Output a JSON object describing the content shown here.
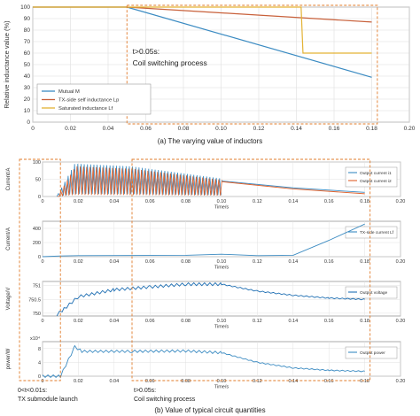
{
  "chart_data": [
    {
      "type": "line",
      "ylabel": "Relative inductance value (%)",
      "xlabel": "",
      "xlim": [
        0,
        0.2
      ],
      "ylim": [
        0,
        100
      ],
      "xticks": [
        "0",
        "0.02",
        "0.04",
        "0.06",
        "0.08",
        "0.10",
        "0.12",
        "0.14",
        "0.16",
        "0.18",
        "0.20"
      ],
      "yticks": [
        "0",
        "10",
        "20",
        "30",
        "40",
        "50",
        "60",
        "70",
        "80",
        "90",
        "100"
      ],
      "grid": true,
      "legend": "lower-left",
      "annotation": [
        "t>0.05s:",
        "Coil switching process"
      ],
      "caption": "(a) The varying value of inductors",
      "series": [
        {
          "name": "Mutual M",
          "color": "#3b8bc2",
          "x": [
            0,
            0.05,
            0.18
          ],
          "y": [
            100,
            100,
            39
          ]
        },
        {
          "name": "TX-side self inductance Lp",
          "color": "#c8603a",
          "x": [
            0,
            0.05,
            0.18
          ],
          "y": [
            100,
            100,
            87
          ]
        },
        {
          "name": "Saturated inductance Lf",
          "color": "#e3b234",
          "x": [
            0,
            0.05,
            0.1425,
            0.1435,
            0.18
          ],
          "y": [
            100,
            100,
            100,
            60,
            60
          ]
        }
      ]
    },
    {
      "type": "line",
      "ylabel": "Current/A",
      "xlabel": "Time/s",
      "xlim": [
        0,
        0.2
      ],
      "yticks": [
        "100",
        "50",
        "0"
      ],
      "xticks": [
        "0",
        "0.02",
        "0.04",
        "0.06",
        "0.08",
        "0.10",
        "0.12",
        "0.14",
        "0.16",
        "0.18",
        "0.20"
      ],
      "grid": true,
      "legend": "right",
      "series": [
        {
          "name": "Output current i1",
          "color": "#3b8bc2"
        },
        {
          "name": "Output current i2",
          "color": "#e0602a"
        }
      ]
    },
    {
      "type": "line",
      "ylabel": "Current/A",
      "xlabel": "Time/s",
      "xlim": [
        0,
        0.2
      ],
      "yticks": [
        "400",
        "200",
        "0"
      ],
      "xticks": [
        "0",
        "0.02",
        "0.04",
        "0.06",
        "0.08",
        "0.10",
        "0.12",
        "0.14",
        "0.16",
        "0.18",
        "0.20"
      ],
      "grid": true,
      "legend": "right",
      "series": [
        {
          "name": "TX-side current Lf",
          "color": "#3b8bc2",
          "x": [
            0,
            0.01,
            0.02,
            0.08,
            0.1,
            0.12,
            0.14,
            0.16,
            0.18
          ],
          "y": [
            0,
            10,
            15,
            20,
            35,
            15,
            20,
            230,
            460
          ]
        }
      ]
    },
    {
      "type": "line",
      "ylabel": "Voltage/V",
      "xlabel": "Time/s",
      "xlim": [
        0,
        0.2
      ],
      "yticks": [
        "751",
        "750.5",
        "750"
      ],
      "xticks": [
        "0",
        "0.02",
        "0.04",
        "0.06",
        "0.08",
        "0.10",
        "0.12",
        "0.14",
        "0.16",
        "0.18",
        "0.20"
      ],
      "grid": true,
      "legend": "right",
      "series": [
        {
          "name": "Output voltage",
          "color": "#1f6fb3",
          "x": [
            0.008,
            0.012,
            0.02,
            0.04,
            0.06,
            0.08,
            0.1,
            0.12,
            0.14,
            0.16,
            0.18
          ],
          "y": [
            749.95,
            750.15,
            750.6,
            750.85,
            750.95,
            751.05,
            751.05,
            750.8,
            750.65,
            750.55,
            750.5
          ]
        }
      ]
    },
    {
      "type": "line",
      "ylabel": "power/W",
      "xlabel": "Time/s",
      "xlim": [
        0,
        0.2
      ],
      "yscale_label": "x10⁴",
      "yticks": [
        "8",
        "4",
        "0"
      ],
      "xticks": [
        "0",
        "0.02",
        "0.04",
        "0.06",
        "0.08",
        "0.10",
        "0.12",
        "0.14",
        "0.16",
        "0.18",
        "0.20"
      ],
      "grid": true,
      "legend": "right",
      "series": [
        {
          "name": "Output power",
          "color": "#3b8bc2",
          "x": [
            0,
            0.01,
            0.018,
            0.022,
            0.05,
            0.08,
            0.1,
            0.12,
            0.14,
            0.16,
            0.18
          ],
          "y": [
            0,
            0,
            8.5,
            7.2,
            7.2,
            7.3,
            6.8,
            4.0,
            2.4,
            1.7,
            1.4
          ]
        }
      ]
    }
  ],
  "annotations": {
    "launch": [
      "0<t<0.01s:",
      "TX submodule launch"
    ],
    "switch": [
      "t>0.05s:",
      "Coil switching process"
    ]
  },
  "caption_b": "(b) Value of typical circuit quantities"
}
